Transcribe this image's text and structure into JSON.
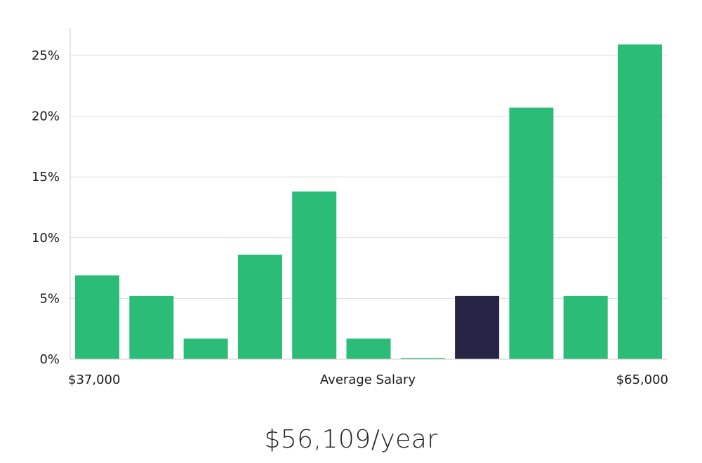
{
  "chart_data": {
    "type": "bar",
    "xlabel": "Average Salary",
    "x_start_label": "$37,000",
    "x_end_label": "$65,000",
    "y_ticks": [
      "0%",
      "5%",
      "10%",
      "15%",
      "20%",
      "25%"
    ],
    "ylim": [
      0,
      27
    ],
    "grid": true,
    "values": [
      6.9,
      5.2,
      1.7,
      8.6,
      13.8,
      1.7,
      0.1,
      5.2,
      20.7,
      5.2,
      25.9
    ],
    "highlight_index": 7,
    "colors": {
      "bar": "#2bbd77",
      "highlight": "#272446",
      "grid": "#dddddd",
      "axis": "#cccccc"
    }
  },
  "summary": {
    "salary": "$56,109/year"
  }
}
